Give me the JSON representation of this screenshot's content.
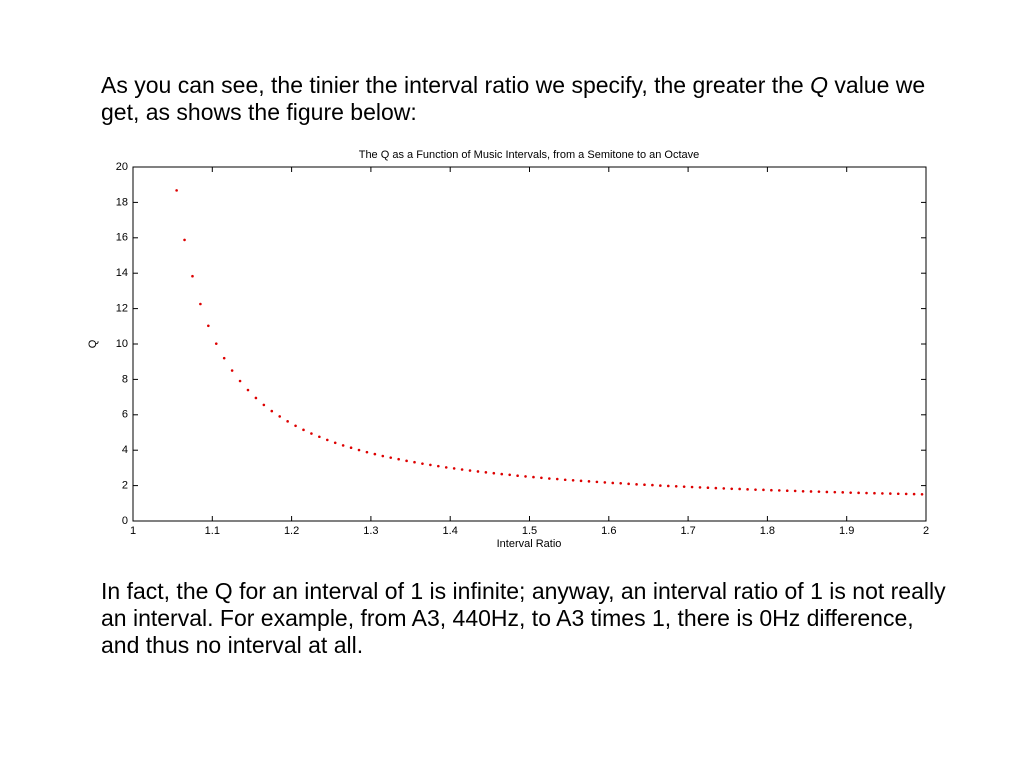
{
  "paragraphs": [
    [
      "As you can see, the tinier the interval ratio we specify, the greater the ",
      "Q",
      " value we get, as shows the figure below:"
    ],
    "In fact, the Q for an interval of 1 is infinite; anyway, an interval ratio of 1 is not really an interval. For example, from A3, 440Hz, to A3 times 1, there is 0Hz difference, and thus no interval at all."
  ],
  "chart_data": {
    "type": "scatter",
    "title": "The Q as a Function of Music Intervals, from a Semitone to an Octave",
    "xlabel": "Interval Ratio",
    "ylabel": "Q",
    "color": "#dd0000",
    "xlim": [
      1,
      2
    ],
    "ylim": [
      0,
      20
    ],
    "xticks": [
      1,
      1.1,
      1.2,
      1.3,
      1.4,
      1.5,
      1.6,
      1.7,
      1.8,
      1.9,
      2
    ],
    "yticks": [
      0,
      2,
      4,
      6,
      8,
      10,
      12,
      14,
      16,
      18,
      20
    ],
    "x": [
      1.055,
      1.065,
      1.075,
      1.085,
      1.095,
      1.105,
      1.115,
      1.125,
      1.135,
      1.145,
      1.155,
      1.165,
      1.175,
      1.185,
      1.195,
      1.205,
      1.215,
      1.225,
      1.235,
      1.245,
      1.255,
      1.265,
      1.275,
      1.285,
      1.295,
      1.305,
      1.315,
      1.325,
      1.335,
      1.345,
      1.355,
      1.365,
      1.375,
      1.385,
      1.395,
      1.405,
      1.415,
      1.425,
      1.435,
      1.445,
      1.455,
      1.465,
      1.475,
      1.485,
      1.495,
      1.505,
      1.515,
      1.525,
      1.535,
      1.545,
      1.555,
      1.565,
      1.575,
      1.585,
      1.595,
      1.605,
      1.615,
      1.625,
      1.635,
      1.645,
      1.655,
      1.665,
      1.675,
      1.685,
      1.695,
      1.705,
      1.715,
      1.725,
      1.735,
      1.745,
      1.755,
      1.765,
      1.775,
      1.785,
      1.795,
      1.805,
      1.815,
      1.825,
      1.835,
      1.845,
      1.855,
      1.865,
      1.875,
      1.885,
      1.895,
      1.905,
      1.915,
      1.925,
      1.935,
      1.945,
      1.955,
      1.965,
      1.975,
      1.985,
      1.995
    ],
    "y": [
      18.68,
      15.88,
      13.83,
      12.26,
      11.03,
      10.02,
      9.2,
      8.5,
      7.91,
      7.4,
      6.95,
      6.56,
      6.21,
      5.91,
      5.63,
      5.38,
      5.15,
      4.94,
      4.76,
      4.58,
      4.42,
      4.27,
      4.14,
      4.01,
      3.89,
      3.78,
      3.67,
      3.58,
      3.49,
      3.4,
      3.32,
      3.24,
      3.17,
      3.1,
      3.03,
      2.97,
      2.91,
      2.85,
      2.8,
      2.75,
      2.7,
      2.65,
      2.61,
      2.56,
      2.52,
      2.48,
      2.44,
      2.4,
      2.37,
      2.33,
      2.3,
      2.27,
      2.24,
      2.21,
      2.18,
      2.15,
      2.13,
      2.1,
      2.07,
      2.05,
      2.03,
      2,
      1.98,
      1.96,
      1.94,
      1.92,
      1.9,
      1.88,
      1.86,
      1.84,
      1.82,
      1.81,
      1.79,
      1.77,
      1.76,
      1.74,
      1.73,
      1.71,
      1.7,
      1.68,
      1.67,
      1.66,
      1.64,
      1.63,
      1.62,
      1.6,
      1.59,
      1.58,
      1.57,
      1.56,
      1.55,
      1.54,
      1.53,
      1.52,
      1.51
    ]
  }
}
